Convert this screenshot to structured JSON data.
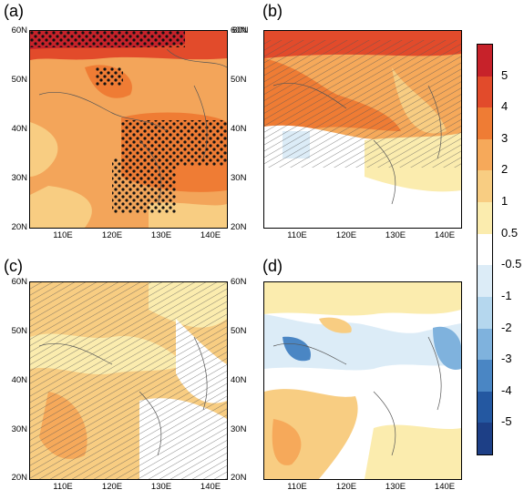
{
  "panels": [
    {
      "label": "(a)"
    },
    {
      "label": "(b)"
    },
    {
      "label": "(c)"
    },
    {
      "label": "(d)"
    }
  ],
  "lat_ticks": [
    "20N",
    "30N",
    "40N",
    "50N",
    "60N"
  ],
  "lon_ticks": [
    "110E",
    "120E",
    "130E",
    "140E"
  ],
  "colorbar": {
    "labels": [
      "5",
      "4",
      "3",
      "2",
      "1",
      "0.5",
      "-0.5",
      "-1",
      "-2",
      "-3",
      "-4",
      "-5"
    ],
    "colors": [
      "#c7222a",
      "#e24b2b",
      "#ef7c34",
      "#f6a95a",
      "#f8cd82",
      "#fbecae",
      "#ffffff",
      "#dcecf7",
      "#b5d7ee",
      "#7fb2dd",
      "#4a86c4",
      "#2458a1",
      "#1d3f86"
    ]
  }
}
